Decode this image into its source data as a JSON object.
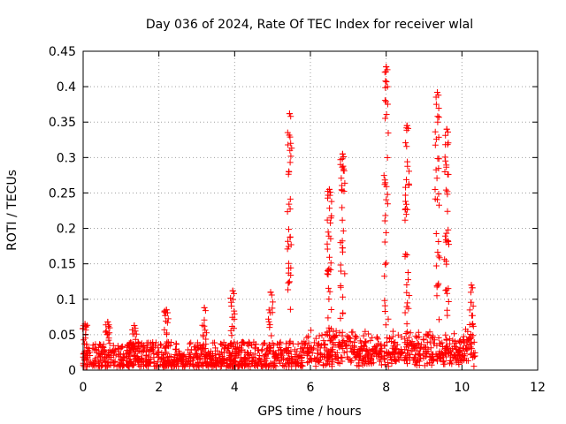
{
  "chart_data": {
    "type": "scatter",
    "title": "Day 036 of 2024, Rate Of TEC Index for receiver wlal",
    "xlabel": "GPS time / hours",
    "ylabel": "ROTI / TECUs",
    "xlim": [
      0,
      12
    ],
    "ylim": [
      0,
      0.45
    ],
    "x_ticks": [
      0,
      2,
      4,
      6,
      8,
      10,
      12
    ],
    "y_ticks": [
      0,
      0.05,
      0.1,
      0.15,
      0.2,
      0.25,
      0.3,
      0.35,
      0.4,
      0.45
    ],
    "x_tick_labels": [
      "0",
      "2",
      "4",
      "6",
      "8",
      "10",
      "12"
    ],
    "y_tick_labels": [
      "0",
      "0.05",
      "0.1",
      "0.15",
      "0.2",
      "0.25",
      "0.3",
      "0.35",
      "0.4",
      "0.45"
    ],
    "grid": true,
    "marker": "+",
    "marker_color": "#ff0000",
    "data_range_hours": [
      0,
      10.35
    ],
    "background_level": {
      "typical_min": 0.005,
      "typical_max": 0.04
    },
    "peaks": [
      {
        "x": 0.05,
        "y": 0.065
      },
      {
        "x": 0.65,
        "y": 0.068
      },
      {
        "x": 1.35,
        "y": 0.063
      },
      {
        "x": 2.2,
        "y": 0.085
      },
      {
        "x": 3.2,
        "y": 0.088
      },
      {
        "x": 3.95,
        "y": 0.112
      },
      {
        "x": 4.95,
        "y": 0.11
      },
      {
        "x": 5.45,
        "y": 0.362
      },
      {
        "x": 6.5,
        "y": 0.255
      },
      {
        "x": 6.85,
        "y": 0.305
      },
      {
        "x": 8.0,
        "y": 0.428
      },
      {
        "x": 8.55,
        "y": 0.345
      },
      {
        "x": 9.35,
        "y": 0.392
      },
      {
        "x": 9.6,
        "y": 0.34
      },
      {
        "x": 10.25,
        "y": 0.12
      }
    ]
  }
}
